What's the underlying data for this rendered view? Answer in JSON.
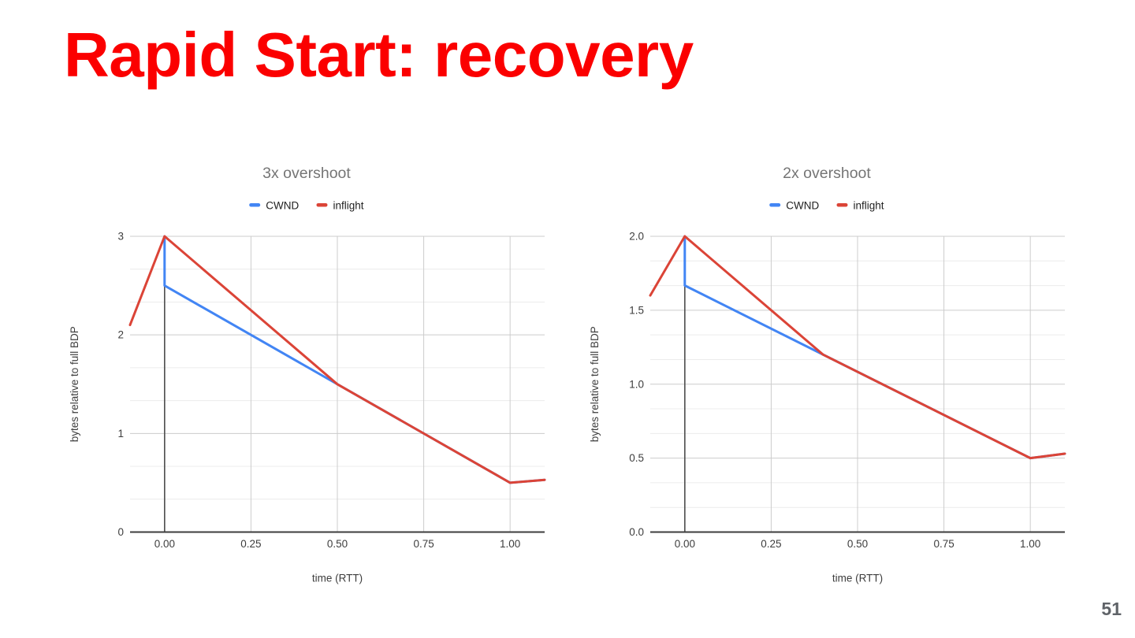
{
  "slide": {
    "title": "Rapid Start: recovery",
    "title_color": "#fb0000",
    "page_number": "51",
    "background_color": "#ffffff"
  },
  "chart_data": [
    {
      "type": "line",
      "title": "3x overshoot",
      "title_color": "#757575",
      "xlabel": "time (RTT)",
      "ylabel": "bytes relative to full BDP",
      "xlim": [
        -0.1,
        1.1
      ],
      "ylim": [
        0,
        3
      ],
      "x_ticks": [
        0,
        0.25,
        0.5,
        0.75,
        1.0
      ],
      "x_tick_labels": [
        "0.00",
        "0.25",
        "0.50",
        "0.75",
        "1.00"
      ],
      "y_ticks": [
        0,
        1,
        2,
        3
      ],
      "y_tick_labels": [
        "0",
        "1",
        "2",
        "3"
      ],
      "y_minor_per_major": 3,
      "grid": true,
      "legend_position": "top",
      "series": [
        {
          "name": "CWND",
          "color": "#4285f4",
          "points": [
            [
              0,
              3
            ],
            [
              0,
              2.5
            ],
            [
              1.0,
              0.5
            ],
            [
              1.1,
              0.53
            ]
          ]
        },
        {
          "name": "inflight",
          "color": "#db4437",
          "points": [
            [
              -0.1,
              2.1
            ],
            [
              0,
              3
            ],
            [
              0.5,
              1.5
            ],
            [
              1.0,
              0.5
            ],
            [
              1.1,
              0.53
            ]
          ]
        }
      ]
    },
    {
      "type": "line",
      "title": "2x overshoot",
      "title_color": "#757575",
      "xlabel": "time (RTT)",
      "ylabel": "bytes relative to full BDP",
      "xlim": [
        -0.1,
        1.1
      ],
      "ylim": [
        0,
        2
      ],
      "x_ticks": [
        0,
        0.25,
        0.5,
        0.75,
        1.0
      ],
      "x_tick_labels": [
        "0.00",
        "0.25",
        "0.50",
        "0.75",
        "1.00"
      ],
      "y_ticks": [
        0,
        0.5,
        1.0,
        1.5,
        2.0
      ],
      "y_tick_labels": [
        "0.0",
        "0.5",
        "1.0",
        "1.5",
        "2.0"
      ],
      "y_minor_per_major": 3,
      "grid": true,
      "legend_position": "top",
      "series": [
        {
          "name": "CWND",
          "color": "#4285f4",
          "points": [
            [
              0,
              2
            ],
            [
              0,
              1.667
            ],
            [
              1.0,
              0.5
            ],
            [
              1.1,
              0.53
            ]
          ]
        },
        {
          "name": "inflight",
          "color": "#db4437",
          "points": [
            [
              -0.1,
              1.6
            ],
            [
              0,
              2
            ],
            [
              0.4,
              1.2
            ],
            [
              1.0,
              0.5
            ],
            [
              1.1,
              0.53
            ]
          ]
        }
      ]
    }
  ]
}
